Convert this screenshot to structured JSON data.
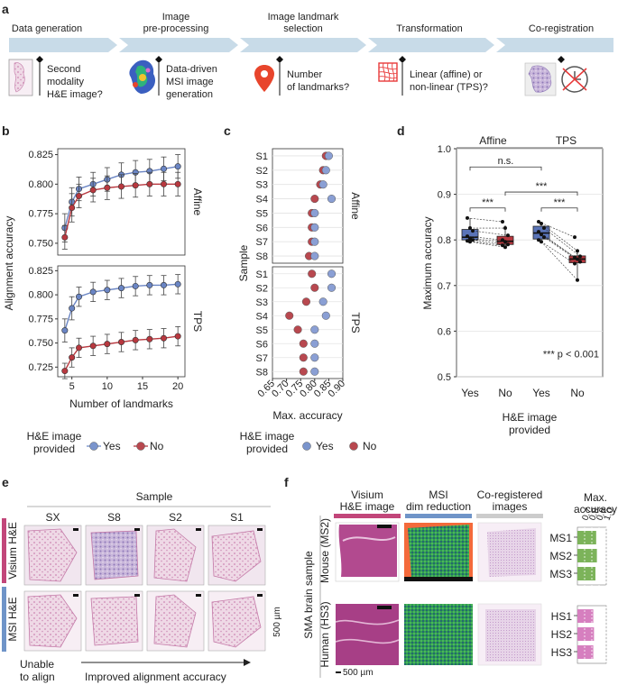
{
  "panel_labels": [
    "a",
    "b",
    "c",
    "d",
    "e",
    "f"
  ],
  "panel_a": {
    "steps": [
      {
        "title_lines": [
          "Data generation"
        ],
        "desc_lines": [
          "Second",
          "modality",
          "H&E image?"
        ]
      },
      {
        "title_lines": [
          "Image",
          "pre-processing"
        ],
        "desc_lines": [
          "Data-driven",
          "MSI image",
          "generation"
        ]
      },
      {
        "title_lines": [
          "Image landmark",
          "selection"
        ],
        "desc_lines": [
          "Number",
          "of landmarks?"
        ]
      },
      {
        "title_lines": [
          "Transformation"
        ],
        "desc_lines": [
          "Linear (affine) or",
          "non-linear (TPS)?"
        ]
      },
      {
        "title_lines": [
          "Co-registration"
        ],
        "desc_lines": []
      }
    ],
    "colors": {
      "arrow": "#c8dbe8",
      "pin": "#e8452c",
      "grid": "#e83a3a",
      "he": "#d9a8c9",
      "msi": "#9b7fd0"
    },
    "icons": [
      "he-thumbnail-icon",
      "msi-image-icon",
      "location-pin-icon",
      "warp-grid-icon",
      "coregistered-image-icon",
      "clock-cross-icon"
    ]
  },
  "chart_data": [
    {
      "id": "b",
      "type": "line",
      "title": "",
      "xlabel": "Number of landmarks",
      "ylabel": "Alignment accuracy",
      "x": [
        3,
        4,
        5,
        6,
        7,
        8,
        9,
        10,
        11,
        12,
        13,
        14,
        15,
        16,
        17,
        18,
        19,
        20
      ],
      "x_ticks": [
        5,
        10,
        15,
        20
      ],
      "facets": [
        {
          "label": "Affine",
          "ylim": [
            0.74,
            0.83
          ],
          "y_ticks": [
            0.75,
            0.775,
            0.8,
            0.825
          ],
          "y_tick_labels": [
            "0.750",
            "0.775",
            "0.800",
            "0.825"
          ],
          "series": [
            {
              "name": "Yes",
              "color": "#6a85c4",
              "x": [
                4,
                5,
                6,
                8,
                10,
                12,
                14,
                16,
                18,
                20
              ],
              "values": [
                0.763,
                0.785,
                0.796,
                0.8,
                0.804,
                0.808,
                0.81,
                0.811,
                0.813,
                0.815
              ],
              "err": [
                0.012,
                0.012,
                0.01,
                0.01,
                0.01,
                0.01,
                0.01,
                0.01,
                0.01,
                0.01
              ]
            },
            {
              "name": "No",
              "color": "#b8383f",
              "x": [
                4,
                5,
                6,
                8,
                10,
                12,
                14,
                16,
                18,
                20
              ],
              "values": [
                0.755,
                0.78,
                0.79,
                0.795,
                0.797,
                0.798,
                0.799,
                0.8,
                0.8,
                0.8
              ],
              "err": [
                0.01,
                0.012,
                0.01,
                0.01,
                0.01,
                0.01,
                0.01,
                0.01,
                0.01,
                0.01
              ]
            }
          ]
        },
        {
          "label": "TPS",
          "ylim": [
            0.715,
            0.83
          ],
          "y_ticks": [
            0.725,
            0.75,
            0.775,
            0.8,
            0.825
          ],
          "y_tick_labels": [
            "0.725",
            "0.750",
            "0.775",
            "0.800",
            "0.825"
          ],
          "series": [
            {
              "name": "Yes",
              "color": "#6a85c4",
              "x": [
                4,
                5,
                6,
                8,
                10,
                12,
                14,
                16,
                18,
                20
              ],
              "values": [
                0.763,
                0.786,
                0.798,
                0.803,
                0.805,
                0.807,
                0.809,
                0.81,
                0.81,
                0.811
              ],
              "err": [
                0.012,
                0.012,
                0.01,
                0.01,
                0.01,
                0.01,
                0.01,
                0.01,
                0.01,
                0.01
              ]
            },
            {
              "name": "No",
              "color": "#b8383f",
              "x": [
                4,
                5,
                6,
                8,
                10,
                12,
                14,
                16,
                18,
                20
              ],
              "values": [
                0.721,
                0.735,
                0.745,
                0.747,
                0.749,
                0.751,
                0.753,
                0.754,
                0.755,
                0.757
              ],
              "err": [
                0.008,
                0.01,
                0.01,
                0.01,
                0.01,
                0.01,
                0.01,
                0.01,
                0.01,
                0.01
              ]
            }
          ]
        }
      ],
      "legend_title_lines": [
        "H&E image",
        "provided"
      ]
    },
    {
      "id": "c",
      "type": "scatter",
      "xlabel": "Max. accuracy",
      "ylabel": "Sample",
      "xlim": [
        0.65,
        0.9
      ],
      "x_ticks": [
        0.65,
        0.7,
        0.75,
        0.8,
        0.85,
        0.9
      ],
      "x_tick_labels": [
        "0.65",
        "0.70",
        "0.75",
        "0.80",
        "0.85",
        "0.90"
      ],
      "samples": [
        "S1",
        "S2",
        "S3",
        "S4",
        "S5",
        "S6",
        "S7",
        "S8"
      ],
      "facets": [
        {
          "label": "Affine",
          "yes": [
            0.85,
            0.84,
            0.83,
            0.86,
            0.8,
            0.8,
            0.8,
            0.8
          ],
          "no": [
            0.84,
            0.83,
            0.82,
            0.8,
            0.79,
            0.79,
            0.79,
            0.78
          ]
        },
        {
          "label": "TPS",
          "yes": [
            0.86,
            0.86,
            0.83,
            0.84,
            0.8,
            0.8,
            0.8,
            0.8
          ],
          "no": [
            0.79,
            0.8,
            0.77,
            0.71,
            0.74,
            0.76,
            0.76,
            0.76
          ]
        }
      ]
    },
    {
      "id": "d",
      "type": "box",
      "ylabel": "Maximum accuracy",
      "xlabel_lines": [
        "H&E image",
        "provided"
      ],
      "ylim": [
        0.5,
        1.0
      ],
      "y_ticks": [
        0.5,
        0.6,
        0.7,
        0.8,
        0.9,
        1.0
      ],
      "y_tick_labels": [
        "0.5",
        "0.6",
        "0.7",
        "0.8",
        "0.9",
        "1.0"
      ],
      "facets": [
        "Affine",
        "TPS"
      ],
      "categories": [
        "Yes",
        "No",
        "Yes",
        "No"
      ],
      "boxes": [
        {
          "q1": 0.8,
          "median": 0.806,
          "q3": 0.823,
          "min": 0.795,
          "max": 0.848,
          "color": "#5a74b8",
          "points": [
            0.848,
            0.826,
            0.82,
            0.808,
            0.803,
            0.8,
            0.798,
            0.796
          ]
        },
        {
          "q1": 0.79,
          "median": 0.797,
          "q3": 0.808,
          "min": 0.783,
          "max": 0.832,
          "color": "#b8383f",
          "points": [
            0.84,
            0.826,
            0.81,
            0.8,
            0.796,
            0.79,
            0.788,
            0.784
          ]
        },
        {
          "q1": 0.802,
          "median": 0.815,
          "q3": 0.83,
          "min": 0.795,
          "max": 0.84,
          "color": "#5a74b8",
          "points": [
            0.84,
            0.836,
            0.826,
            0.818,
            0.812,
            0.806,
            0.8,
            0.796
          ]
        },
        {
          "q1": 0.75,
          "median": 0.758,
          "q3": 0.765,
          "min": 0.712,
          "max": 0.78,
          "color": "#b8383f",
          "points": [
            0.806,
            0.776,
            0.764,
            0.762,
            0.758,
            0.752,
            0.748,
            0.712
          ]
        }
      ],
      "annotations": [
        {
          "text": "n.s.",
          "between": [
            0,
            2
          ]
        },
        {
          "text": "***",
          "between": [
            0,
            1
          ]
        },
        {
          "text": "***",
          "between": [
            1,
            3
          ]
        },
        {
          "text": "***",
          "between": [
            2,
            3
          ]
        }
      ],
      "footnote": "*** p < 0.001"
    },
    {
      "id": "f",
      "type": "bar",
      "title_lines": [
        "Max.",
        "accuracy"
      ],
      "x_ticks": [
        0.7,
        0.8,
        0.9,
        1.0
      ],
      "x_tick_labels": [
        "0.7",
        "0.8",
        "0.9",
        "1.0"
      ],
      "xlim": [
        0.6,
        1.0
      ],
      "groups": [
        {
          "categories": [
            "MS1",
            "MS2",
            "MS3"
          ],
          "values": [
            0.86,
            0.87,
            0.85
          ],
          "color": "#7cb35a"
        },
        {
          "categories": [
            "HS1",
            "HS2",
            "HS3"
          ],
          "values": [
            0.82,
            0.83,
            0.82
          ],
          "color": "#d67fbf"
        }
      ]
    }
  ],
  "legend": {
    "title_lines": [
      "H&E image",
      "provided"
    ],
    "items": [
      {
        "label": "Yes",
        "color": "#7a94cc"
      },
      {
        "label": "No",
        "color": "#b8484f"
      }
    ]
  },
  "panel_e": {
    "header": "Sample",
    "columns": [
      "SX",
      "S8",
      "S2",
      "S1"
    ],
    "rows": [
      {
        "label": "Visium H&E",
        "color": "#c2467a"
      },
      {
        "label": "MSI H&E",
        "color": "#6f94c8"
      }
    ],
    "scale": "500 µm",
    "unable_lines": [
      "Unable",
      "to align"
    ],
    "improved": "Improved alignment accuracy"
  },
  "panel_f": {
    "column_headers": [
      {
        "lines": [
          "Visium",
          "H&E image"
        ],
        "color": "#c2467a"
      },
      {
        "lines": [
          "MSI",
          "dim reduction"
        ],
        "color": "#6f94c8"
      },
      {
        "lines": [
          "Co-registered",
          "images"
        ],
        "color": "#cccccc"
      }
    ],
    "group_label": "SMA brain sample",
    "row_labels": [
      "Mouse (MS2)",
      "Human (HS3)"
    ],
    "scale": "500 µm"
  }
}
